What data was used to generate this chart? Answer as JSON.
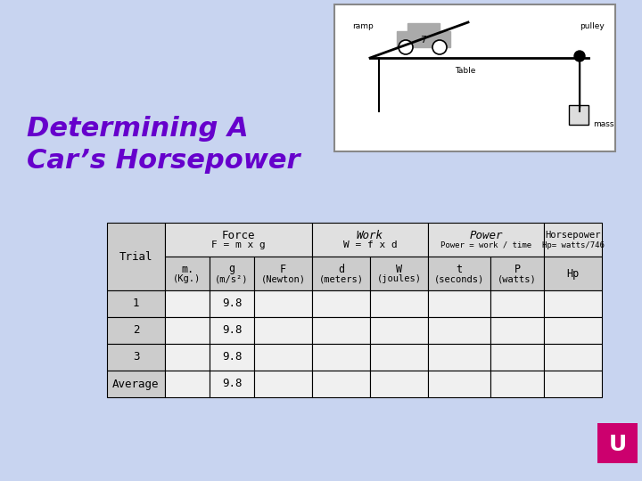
{
  "title_line1": "Determining A",
  "title_line2": "Car’s Horsepower",
  "title_color": "#6600cc",
  "background_color": "#c8d4f0",
  "table_bg_header": "#e8e8e8",
  "table_bg_subheader": "#d8d8d8",
  "table_bg_data": "#f0f0f0",
  "table_border": "#000000",
  "col_headers": [
    "Force\nF = m x g",
    "Work\nW = f x d",
    "Power\nPower = work / time",
    "Horsepower\nHp= watts/746"
  ],
  "col_header_spans": [
    3,
    2,
    2,
    1
  ],
  "subheaders": [
    "Trial",
    "m.\n(Kg.)",
    "g\n(m/s²)",
    "F\n(Newton)",
    "d\n(meters)",
    "W\n(joules)",
    "t\n(seconds)",
    "P\n(watts)",
    "Hp"
  ],
  "rows": [
    [
      "1",
      "",
      "9.8",
      "",
      "",
      "",
      "",
      "",
      ""
    ],
    [
      "2",
      "",
      "9.8",
      "",
      "",
      "",
      "",
      "",
      ""
    ],
    [
      "3",
      "",
      "9.8",
      "",
      "",
      "",
      "",
      "",
      ""
    ],
    [
      "Average",
      "",
      "9.8",
      "",
      "",
      "",
      "",
      "",
      ""
    ]
  ],
  "font_size_title": 22,
  "font_size_table": 9,
  "magenta_logo_color": "#cc006e"
}
